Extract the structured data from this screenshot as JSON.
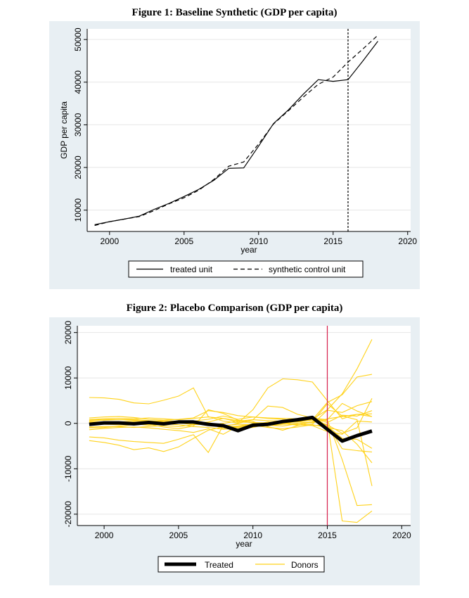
{
  "chart_data": [
    {
      "type": "line",
      "title": "Figure 1: Baseline Synthetic (GDP per capita)",
      "xlabel": "year",
      "ylabel": "GDP per capita",
      "xlim": [
        1998.5,
        2020.2
      ],
      "ylim": [
        5000,
        52500
      ],
      "xticks": [
        2000,
        2005,
        2010,
        2015,
        2020
      ],
      "yticks": [
        10000,
        20000,
        30000,
        40000,
        50000
      ],
      "vline": 2016,
      "legend": [
        "treated unit",
        "synthetic control unit"
      ],
      "series": [
        {
          "name": "treated unit",
          "x": [
            1999,
            2000,
            2001,
            2002,
            2003,
            2004,
            2005,
            2006,
            2007,
            2008,
            2009,
            2010,
            2011,
            2012,
            2013,
            2014,
            2015,
            2016,
            2017,
            2018
          ],
          "values": [
            6600,
            7300,
            7900,
            8600,
            10200,
            11600,
            13200,
            14900,
            17000,
            19800,
            19900,
            25000,
            30300,
            33500,
            37200,
            40600,
            40200,
            40600,
            45000,
            49600
          ]
        },
        {
          "name": "synthetic control unit",
          "x": [
            1999,
            2000,
            2001,
            2002,
            2003,
            2004,
            2005,
            2006,
            2007,
            2008,
            2009,
            2010,
            2011,
            2012,
            2013,
            2014,
            2015,
            2016,
            2017,
            2018
          ],
          "values": [
            6400,
            7300,
            7900,
            8500,
            9900,
            11500,
            12900,
            14700,
            17200,
            20300,
            21300,
            25500,
            30200,
            33300,
            36500,
            39500,
            41200,
            44700,
            47800,
            51000
          ]
        }
      ]
    },
    {
      "type": "line",
      "title": "Figure 2: Placebo Comparison (GDP per capita)",
      "xlabel": "year",
      "ylabel": "",
      "xlim": [
        1998.2,
        2020.6
      ],
      "ylim": [
        -22500,
        21500
      ],
      "xticks": [
        2000,
        2005,
        2010,
        2015,
        2020
      ],
      "yticks": [
        -20000,
        -10000,
        0,
        10000,
        20000
      ],
      "vline": 2015,
      "legend": [
        "Treated",
        "Donors"
      ],
      "x": [
        1999,
        2000,
        2001,
        2002,
        2003,
        2004,
        2005,
        2006,
        2007,
        2008,
        2009,
        2010,
        2011,
        2012,
        2013,
        2014,
        2015,
        2016,
        2017,
        2018
      ],
      "treated": [
        -200,
        100,
        100,
        -100,
        200,
        -100,
        300,
        300,
        -200,
        -500,
        -1600,
        -400,
        -200,
        400,
        800,
        1300,
        -1300,
        -3900,
        -2700,
        -1700
      ],
      "donors": [
        [
          5700,
          5600,
          5300,
          4500,
          4300,
          5100,
          6000,
          7800,
          1500,
          500,
          100,
          3000,
          7800,
          9800,
          9600,
          9100,
          5000,
          1000,
          2000,
          1500
        ],
        [
          -3000,
          -3200,
          -3700,
          -4000,
          -4200,
          -4400,
          -3500,
          -2500,
          -6400,
          -500,
          -200,
          -300,
          -500,
          -200,
          500,
          900,
          3000,
          6500,
          12000,
          18500
        ],
        [
          -3800,
          -4200,
          -4800,
          -5800,
          -5400,
          -6200,
          -5200,
          -3300,
          -1500,
          -800,
          0,
          800,
          3800,
          3500,
          2000,
          1200,
          500,
          -21500,
          -21800,
          -19300
        ],
        [
          1200,
          1400,
          1500,
          1300,
          900,
          700,
          900,
          1200,
          2800,
          2400,
          1700,
          1400,
          1200,
          1100,
          1000,
          1200,
          800,
          -8000,
          -18100,
          -17900
        ],
        [
          -1000,
          -900,
          -600,
          -300,
          -200,
          -800,
          -1200,
          -600,
          3000,
          2200,
          700,
          400,
          -700,
          -1500,
          -500,
          300,
          4300,
          1600,
          800,
          -13800
        ],
        [
          -1400,
          -1100,
          -900,
          -800,
          -1000,
          -1300,
          -1600,
          -2000,
          -1200,
          -2400,
          -600,
          -400,
          -900,
          -1200,
          -800,
          -300,
          -900,
          -1600,
          -4600,
          -8700
        ],
        [
          600,
          700,
          800,
          900,
          600,
          400,
          300,
          500,
          900,
          1600,
          900,
          1400,
          1100,
          900,
          600,
          800,
          4600,
          6300,
          10200,
          10800
        ],
        [
          200,
          100,
          -100,
          300,
          100,
          -300,
          100,
          -300,
          -200,
          -800,
          -600,
          -100,
          0,
          200,
          400,
          600,
          -300,
          -2200,
          -1000,
          5500
        ],
        [
          0,
          -200,
          -300,
          -100,
          -400,
          -100,
          -300,
          -700,
          -900,
          -1300,
          -1100,
          -700,
          -400,
          -200,
          0,
          -500,
          -300,
          -5600,
          -6000,
          -6300
        ],
        [
          900,
          1000,
          1100,
          1000,
          1200,
          1000,
          800,
          1100,
          1400,
          1100,
          300,
          200,
          100,
          300,
          900,
          1500,
          -600,
          -3300,
          -3500,
          -5500
        ],
        [
          400,
          300,
          300,
          500,
          300,
          200,
          400,
          -100,
          -400,
          0,
          500,
          800,
          600,
          500,
          900,
          1100,
          200,
          1800,
          1600,
          2800
        ],
        [
          -800,
          -700,
          -700,
          -900,
          -700,
          -500,
          -700,
          -300,
          0,
          -300,
          -1200,
          -900,
          -200,
          0,
          -400,
          -200,
          2900,
          2400,
          3900,
          4800
        ],
        [
          300,
          200,
          100,
          -200,
          -100,
          -200,
          200,
          400,
          200,
          -700,
          -900,
          -400,
          -200,
          100,
          300,
          100,
          1000,
          1500,
          2000,
          2100
        ],
        [
          700,
          900,
          800,
          700,
          500,
          600,
          500,
          300,
          -100,
          -1100,
          -700,
          -300,
          300,
          200,
          -300,
          -500,
          -1800,
          -2400,
          500,
          300
        ],
        [
          -200,
          -100,
          0,
          100,
          400,
          300,
          200,
          0,
          300,
          1100,
          600,
          100,
          -400,
          -600,
          -100,
          300,
          800,
          4400,
          2700,
          1500
        ]
      ]
    }
  ]
}
